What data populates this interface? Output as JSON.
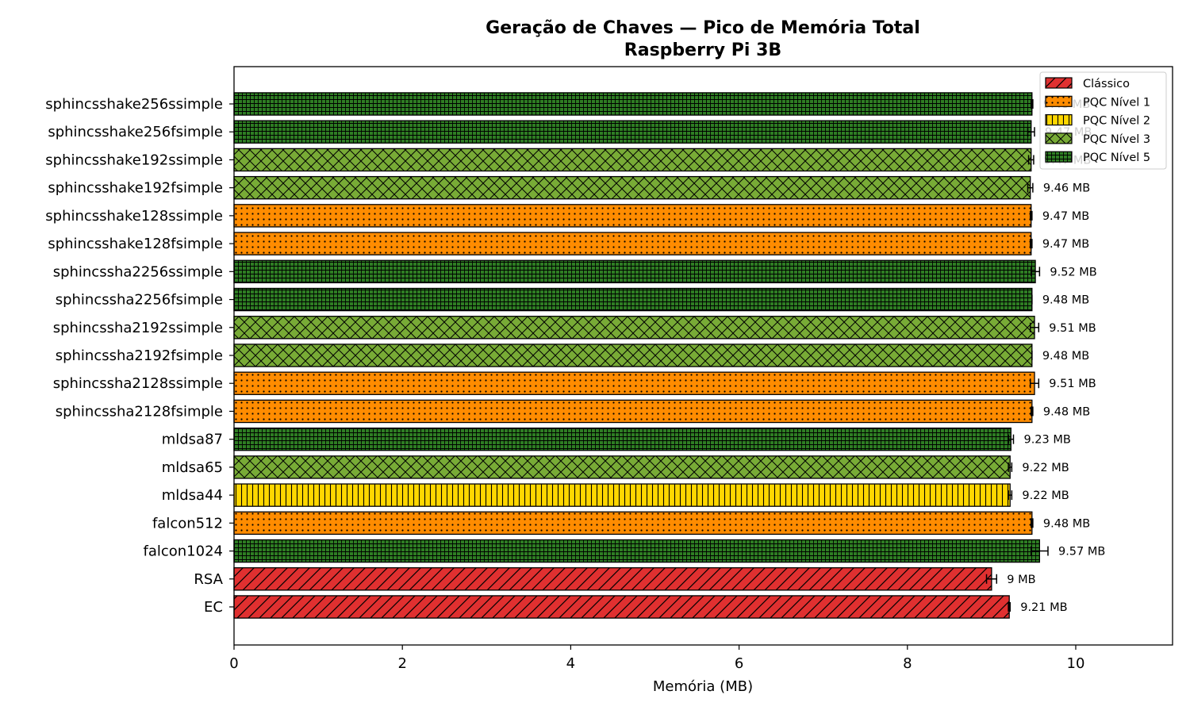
{
  "chart_data": {
    "type": "bar",
    "orientation": "horizontal",
    "title": "Geração de Chaves — Pico de Memória Total",
    "subtitle": "Raspberry Pi 3B",
    "xlabel": "Memória (MB)",
    "ylabel": "",
    "xlim": [
      0,
      11.15
    ],
    "xticks": [
      0,
      2,
      4,
      6,
      8,
      10
    ],
    "grid": false,
    "legend_placement": "top-right",
    "categories": [
      "EC",
      "RSA",
      "falcon1024",
      "falcon512",
      "mldsa44",
      "mldsa65",
      "mldsa87",
      "sphincssha2128fsimple",
      "sphincssha2128ssimple",
      "sphincssha2192fsimple",
      "sphincssha2192ssimple",
      "sphincssha2256fsimple",
      "sphincssha2256ssimple",
      "sphincsshake128fsimple",
      "sphincsshake128ssimple",
      "sphincsshake192fsimple",
      "sphincsshake192ssimple",
      "sphincsshake256fsimple",
      "sphincsshake256ssimple"
    ],
    "values": [
      9.21,
      9.0,
      9.57,
      9.48,
      9.22,
      9.22,
      9.23,
      9.48,
      9.51,
      9.48,
      9.51,
      9.48,
      9.52,
      9.47,
      9.47,
      9.46,
      9.47,
      9.47,
      9.48
    ],
    "errors": [
      0.01,
      0.06,
      0.1,
      0.01,
      0.02,
      0.02,
      0.03,
      0.01,
      0.05,
      0.0,
      0.05,
      0.0,
      0.05,
      0.01,
      0.01,
      0.03,
      0.03,
      0.04,
      0.01
    ],
    "value_labels": [
      "9.21 MB",
      "9 MB",
      "9.57 MB",
      "9.48 MB",
      "9.22 MB",
      "9.22 MB",
      "9.23 MB",
      "9.48 MB",
      "9.51 MB",
      "9.48 MB",
      "9.51 MB",
      "9.48 MB",
      "9.52 MB",
      "9.47 MB",
      "9.47 MB",
      "9.46 MB",
      "9.47 MB",
      "9.47 MB",
      "9.48 MB"
    ],
    "groups": [
      "Clássico",
      "Clássico",
      "PQC Nível 5",
      "PQC Nível 1",
      "PQC Nível 2",
      "PQC Nível 3",
      "PQC Nível 5",
      "PQC Nível 1",
      "PQC Nível 1",
      "PQC Nível 3",
      "PQC Nível 3",
      "PQC Nível 5",
      "PQC Nível 5",
      "PQC Nível 1",
      "PQC Nível 1",
      "PQC Nível 3",
      "PQC Nível 3",
      "PQC Nível 5",
      "PQC Nível 5"
    ],
    "legend": [
      {
        "name": "Clássico",
        "color": "#e03030",
        "pattern": "diagonal"
      },
      {
        "name": "PQC Nível 1",
        "color": "#ff8c00",
        "pattern": "dots"
      },
      {
        "name": "PQC Nível 2",
        "color": "#ffd700",
        "pattern": "vertical"
      },
      {
        "name": "PQC Nível 3",
        "color": "#78ab36",
        "pattern": "crosshatch"
      },
      {
        "name": "PQC Nível 5",
        "color": "#2e7d23",
        "pattern": "grid"
      }
    ]
  }
}
